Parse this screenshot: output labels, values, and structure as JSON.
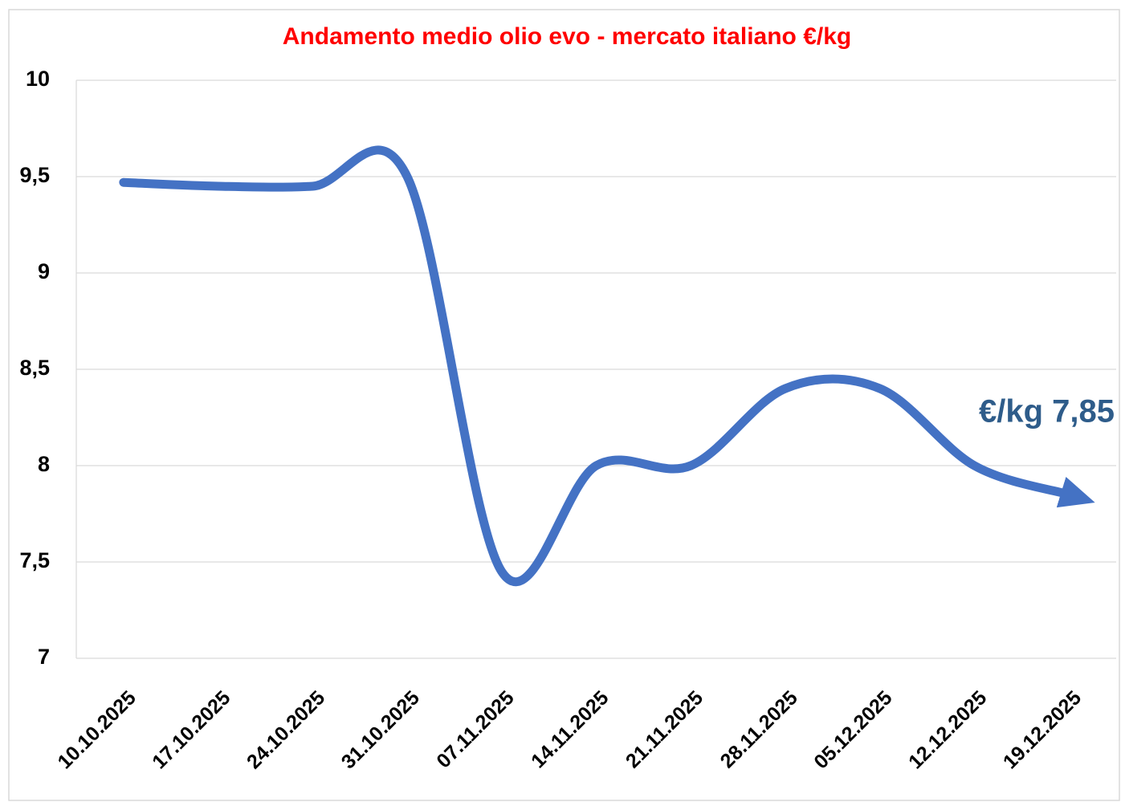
{
  "chart_data": {
    "type": "line",
    "title": "Andamento medio olio evo - mercato italiano €/kg",
    "annotation": "€/kg 7,85",
    "categories": [
      "10.10.2025",
      "17.10.2025",
      "24.10.2025",
      "31.10.2025",
      "07.11.2025",
      "14.11.2025",
      "21.11.2025",
      "28.11.2025",
      "05.12.2025",
      "12.12.2025",
      "19.12.2025"
    ],
    "series": [
      {
        "color": "#4472c4",
        "values": [
          9.47,
          9.45,
          9.45,
          9.5,
          7.45,
          8.0,
          8.0,
          8.4,
          8.4,
          8.0,
          7.85
        ]
      }
    ],
    "ylim": [
      7,
      10
    ],
    "yticks": [
      7,
      {
        "value": 7.5,
        "label": "7,5"
      },
      8,
      {
        "value": 8.5,
        "label": "8,5"
      },
      9,
      {
        "value": 9.5,
        "label": "9,5"
      },
      10
    ],
    "grid": true,
    "smooth": true
  }
}
